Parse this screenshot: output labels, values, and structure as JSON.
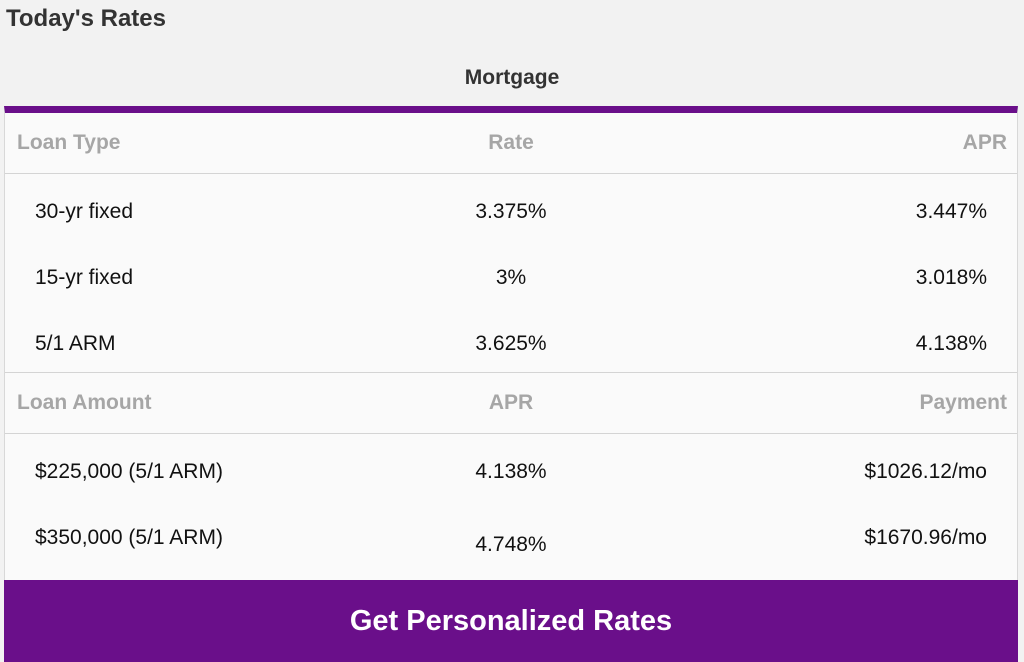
{
  "page": {
    "title": "Today's Rates"
  },
  "tab": {
    "label": "Mortgage"
  },
  "rates_table": {
    "headers": [
      "Loan Type",
      "Rate",
      "APR"
    ],
    "rows": [
      [
        "30-yr fixed",
        "3.375%",
        "3.447%"
      ],
      [
        "15-yr fixed",
        "3%",
        "3.018%"
      ],
      [
        "5/1 ARM",
        "3.625%",
        "4.138%"
      ]
    ]
  },
  "payment_table": {
    "headers": [
      "Loan Amount",
      "APR",
      "Payment"
    ],
    "rows": [
      [
        "$225,000 (5/1 ARM)",
        "4.138%",
        "$1026.12/mo"
      ],
      [
        "$350,000 (5/1 ARM)",
        "4.748%",
        "$1670.96/mo"
      ]
    ]
  },
  "cta": {
    "label": "Get Personalized Rates"
  },
  "colors": {
    "accent": "#6a0f8a",
    "header_text": "#a6a6a6",
    "background": "#f2f2f2"
  }
}
